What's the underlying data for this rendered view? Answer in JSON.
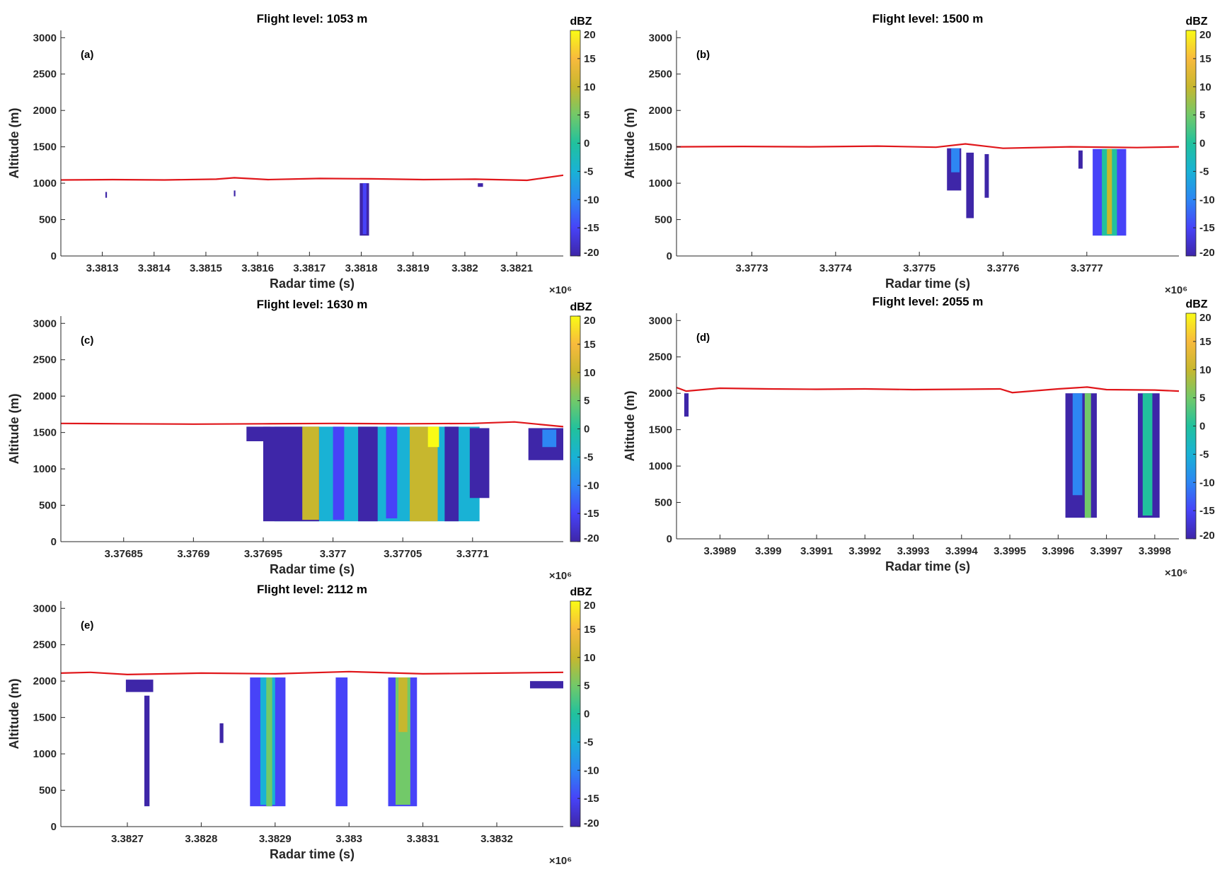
{
  "colormap": [
    "#3e26a8",
    "#4743f8",
    "#2d86f3",
    "#19b2d5",
    "#21c19d",
    "#72c969",
    "#c7b72e",
    "#f8ba3d",
    "#f9fb15"
  ],
  "flight_path_color": "#e0161a",
  "chart_data": [
    {
      "type": "heatmap",
      "panel_label": "(a)",
      "title": "Flight level: 1053 m",
      "xlabel": "Radar time (s)",
      "ylabel": "Altitude (m)",
      "x_multiplier": "×10⁶",
      "xlim": [
        3.38122,
        3.38219
      ],
      "ylim": [
        0,
        3100
      ],
      "xticks": [
        3.3813,
        3.3814,
        3.3815,
        3.3816,
        3.3817,
        3.3818,
        3.3819,
        3.382,
        3.3821
      ],
      "xtick_labels": [
        "3.3813",
        "3.3814",
        "3.3815",
        "3.3816",
        "3.3817",
        "3.3818",
        "3.3819",
        "3.382",
        "3.3821"
      ],
      "yticks": [
        0,
        500,
        1000,
        1500,
        2000,
        2500,
        3000
      ],
      "colorbar": {
        "unit": "dBZ",
        "range": [
          -20,
          20
        ],
        "ticks": [
          -20,
          -15,
          -10,
          -5,
          0,
          5,
          10,
          15,
          20
        ]
      },
      "flight_altitude": {
        "x": [
          3.38122,
          3.38132,
          3.38142,
          3.38152,
          3.381555,
          3.38162,
          3.38172,
          3.38182,
          3.38192,
          3.38202,
          3.38212,
          3.38219
        ],
        "y": [
          1045,
          1050,
          1045,
          1055,
          1075,
          1050,
          1065,
          1060,
          1050,
          1055,
          1040,
          1110
        ]
      },
      "echoes": [
        {
          "x0": 3.381797,
          "x1": 3.381815,
          "top": 1000,
          "bottom": 280,
          "dbz": -18
        },
        {
          "x0": 3.381803,
          "x1": 3.38181,
          "top": 1000,
          "bottom": 300,
          "dbz": -14
        },
        {
          "x0": 3.381306,
          "x1": 3.381309,
          "top": 880,
          "bottom": 800,
          "dbz": -20
        },
        {
          "x0": 3.381554,
          "x1": 3.381557,
          "top": 900,
          "bottom": 820,
          "dbz": -20
        },
        {
          "x0": 3.382025,
          "x1": 3.382035,
          "top": 1000,
          "bottom": 950,
          "dbz": -20
        }
      ]
    },
    {
      "type": "heatmap",
      "panel_label": "(b)",
      "title": "Flight level: 1500 m",
      "xlabel": "Radar time (s)",
      "ylabel": "Altitude (m)",
      "x_multiplier": "×10⁶",
      "xlim": [
        3.37721,
        3.37781
      ],
      "ylim": [
        0,
        3100
      ],
      "xticks": [
        3.3773,
        3.3774,
        3.3775,
        3.3776,
        3.3777
      ],
      "xtick_labels": [
        "3.3773",
        "3.3774",
        "3.3775",
        "3.3776",
        "3.3777"
      ],
      "yticks": [
        0,
        500,
        1000,
        1500,
        2000,
        2500,
        3000
      ],
      "colorbar": {
        "unit": "dBZ",
        "range": [
          -20,
          20
        ],
        "ticks": [
          -20,
          -15,
          -10,
          -5,
          0,
          5,
          10,
          15,
          20
        ]
      },
      "flight_altitude": {
        "x": [
          3.37721,
          3.37729,
          3.37737,
          3.37745,
          3.37752,
          3.377555,
          3.3776,
          3.37768,
          3.37776,
          3.37781
        ],
        "y": [
          1500,
          1505,
          1500,
          1510,
          1495,
          1540,
          1480,
          1500,
          1490,
          1500
        ]
      },
      "echoes": [
        {
          "x0": 3.377533,
          "x1": 3.37755,
          "top": 1480,
          "bottom": 900,
          "dbz": -18
        },
        {
          "x0": 3.377538,
          "x1": 3.377548,
          "top": 1480,
          "bottom": 1150,
          "dbz": -8
        },
        {
          "x0": 3.377556,
          "x1": 3.377565,
          "top": 1420,
          "bottom": 520,
          "dbz": -19
        },
        {
          "x0": 3.377578,
          "x1": 3.377583,
          "top": 1400,
          "bottom": 800,
          "dbz": -18
        },
        {
          "x0": 3.377707,
          "x1": 3.377747,
          "top": 1470,
          "bottom": 280,
          "dbz": -14
        },
        {
          "x0": 3.377718,
          "x1": 3.377736,
          "top": 1470,
          "bottom": 280,
          "dbz": 0
        },
        {
          "x0": 3.377724,
          "x1": 3.37773,
          "top": 1470,
          "bottom": 300,
          "dbz": 8
        },
        {
          "x0": 3.37769,
          "x1": 3.377695,
          "top": 1450,
          "bottom": 1200,
          "dbz": -19
        }
      ]
    },
    {
      "type": "heatmap",
      "panel_label": "(c)",
      "title": "Flight level: 1630 m",
      "xlabel": "Radar time (s)",
      "ylabel": "Altitude (m)",
      "x_multiplier": "×10⁶",
      "xlim": [
        3.376805,
        3.377165
      ],
      "ylim": [
        0,
        3100
      ],
      "xticks": [
        3.37685,
        3.3769,
        3.37695,
        3.377,
        3.37705,
        3.3771
      ],
      "xtick_labels": [
        "3.37685",
        "3.3769",
        "3.37695",
        "3.377",
        "3.37705",
        "3.3771"
      ],
      "yticks": [
        0,
        500,
        1000,
        1500,
        2000,
        2500,
        3000
      ],
      "colorbar": {
        "unit": "dBZ",
        "range": [
          -20,
          20
        ],
        "ticks": [
          -20,
          -15,
          -10,
          -5,
          0,
          5,
          10,
          15,
          20
        ]
      },
      "flight_altitude": {
        "x": [
          3.376805,
          3.37685,
          3.3769,
          3.37695,
          3.377,
          3.37705,
          3.3771,
          3.37713,
          3.377165
        ],
        "y": [
          1625,
          1620,
          1615,
          1620,
          1625,
          1620,
          1625,
          1645,
          1580
        ]
      },
      "echoes": [
        {
          "x0": 3.376958,
          "x1": 3.377105,
          "top": 1580,
          "bottom": 280,
          "dbz": -4
        },
        {
          "x0": 3.37695,
          "x1": 3.37699,
          "top": 1580,
          "bottom": 280,
          "dbz": -16
        },
        {
          "x0": 3.376978,
          "x1": 3.37699,
          "top": 1580,
          "bottom": 300,
          "dbz": 8
        },
        {
          "x0": 3.377,
          "x1": 3.377008,
          "top": 1580,
          "bottom": 300,
          "dbz": -12
        },
        {
          "x0": 3.377018,
          "x1": 3.377032,
          "top": 1580,
          "bottom": 280,
          "dbz": -17
        },
        {
          "x0": 3.377038,
          "x1": 3.377046,
          "top": 1580,
          "bottom": 320,
          "dbz": -14
        },
        {
          "x0": 3.377055,
          "x1": 3.377075,
          "top": 1580,
          "bottom": 280,
          "dbz": 8
        },
        {
          "x0": 3.377068,
          "x1": 3.377076,
          "top": 1580,
          "bottom": 1300,
          "dbz": 18
        },
        {
          "x0": 3.37708,
          "x1": 3.37709,
          "top": 1580,
          "bottom": 280,
          "dbz": -18
        },
        {
          "x0": 3.377098,
          "x1": 3.377112,
          "top": 1560,
          "bottom": 600,
          "dbz": -18
        },
        {
          "x0": 3.376938,
          "x1": 3.376955,
          "top": 1580,
          "bottom": 1380,
          "dbz": -18
        },
        {
          "x0": 3.37714,
          "x1": 3.377165,
          "top": 1560,
          "bottom": 1120,
          "dbz": -17
        },
        {
          "x0": 3.37715,
          "x1": 3.37716,
          "top": 1540,
          "bottom": 1300,
          "dbz": -10
        }
      ]
    },
    {
      "type": "heatmap",
      "panel_label": "(d)",
      "title": "Flight level: 2055 m",
      "xlabel": "Radar time (s)",
      "ylabel": "Altitude (m)",
      "x_multiplier": "×10⁶",
      "xlim": [
        3.39881,
        3.39985
      ],
      "ylim": [
        0,
        3100
      ],
      "xticks": [
        3.3989,
        3.399,
        3.3991,
        3.3992,
        3.3993,
        3.3994,
        3.3995,
        3.3996,
        3.3997,
        3.3998
      ],
      "xtick_labels": [
        "3.3989",
        "3.399",
        "3.3991",
        "3.3992",
        "3.3993",
        "3.3994",
        "3.3995",
        "3.3996",
        "3.3997",
        "3.3998"
      ],
      "yticks": [
        0,
        500,
        1000,
        1500,
        2000,
        2500,
        3000
      ],
      "colorbar": {
        "unit": "dBZ",
        "range": [
          -20,
          20
        ],
        "ticks": [
          -20,
          -15,
          -10,
          -5,
          0,
          5,
          10,
          15,
          20
        ]
      },
      "flight_altitude": {
        "x": [
          3.39881,
          3.39883,
          3.3989,
          3.399,
          3.3991,
          3.3992,
          3.3993,
          3.3994,
          3.39948,
          3.399505,
          3.3996,
          3.39966,
          3.3997,
          3.3998,
          3.39985
        ],
        "y": [
          2080,
          2030,
          2070,
          2060,
          2055,
          2060,
          2050,
          2055,
          2060,
          2010,
          2060,
          2085,
          2050,
          2045,
          2030
        ]
      },
      "echoes": [
        {
          "x0": 3.398826,
          "x1": 3.398835,
          "top": 2000,
          "bottom": 1680,
          "dbz": -17
        },
        {
          "x0": 3.399615,
          "x1": 3.39968,
          "top": 2000,
          "bottom": 290,
          "dbz": -16
        },
        {
          "x0": 3.39963,
          "x1": 3.39965,
          "top": 2000,
          "bottom": 600,
          "dbz": -8
        },
        {
          "x0": 3.399655,
          "x1": 3.399668,
          "top": 2000,
          "bottom": 290,
          "dbz": 6
        },
        {
          "x0": 3.399765,
          "x1": 3.39981,
          "top": 2000,
          "bottom": 290,
          "dbz": -16
        },
        {
          "x0": 3.399775,
          "x1": 3.399795,
          "top": 2000,
          "bottom": 320,
          "dbz": 2
        }
      ]
    },
    {
      "type": "heatmap",
      "panel_label": "(e)",
      "title": "Flight level: 2112 m",
      "xlabel": "Radar time (s)",
      "ylabel": "Altitude (m)",
      "x_multiplier": "×10⁶",
      "xlim": [
        3.38261,
        3.38329
      ],
      "ylim": [
        0,
        3100
      ],
      "xticks": [
        3.3827,
        3.3828,
        3.3829,
        3.383,
        3.3831,
        3.3832
      ],
      "xtick_labels": [
        "3.3827",
        "3.3828",
        "3.3829",
        "3.383",
        "3.3831",
        "3.3832"
      ],
      "yticks": [
        0,
        500,
        1000,
        1500,
        2000,
        2500,
        3000
      ],
      "colorbar": {
        "unit": "dBZ",
        "range": [
          -20,
          20
        ],
        "ticks": [
          -20,
          -15,
          -10,
          -5,
          0,
          5,
          10,
          15,
          20
        ]
      },
      "flight_altitude": {
        "x": [
          3.38261,
          3.38265,
          3.3827,
          3.3828,
          3.3829,
          3.383,
          3.3831,
          3.3832,
          3.38329
        ],
        "y": [
          2110,
          2120,
          2090,
          2110,
          2100,
          2130,
          2100,
          2110,
          2120
        ]
      },
      "echoes": [
        {
          "x0": 3.382698,
          "x1": 3.382735,
          "top": 2020,
          "bottom": 1850,
          "dbz": -18
        },
        {
          "x0": 3.382723,
          "x1": 3.38273,
          "top": 1800,
          "bottom": 280,
          "dbz": -17
        },
        {
          "x0": 3.382866,
          "x1": 3.382914,
          "top": 2050,
          "bottom": 280,
          "dbz": -14
        },
        {
          "x0": 3.38288,
          "x1": 3.3829,
          "top": 2050,
          "bottom": 300,
          "dbz": -6
        },
        {
          "x0": 3.382888,
          "x1": 3.382896,
          "top": 2050,
          "bottom": 280,
          "dbz": 6
        },
        {
          "x0": 3.382982,
          "x1": 3.382998,
          "top": 2050,
          "bottom": 280,
          "dbz": -12
        },
        {
          "x0": 3.383053,
          "x1": 3.383092,
          "top": 2050,
          "bottom": 280,
          "dbz": -12
        },
        {
          "x0": 3.383063,
          "x1": 3.383083,
          "top": 2050,
          "bottom": 300,
          "dbz": 4
        },
        {
          "x0": 3.383067,
          "x1": 3.383079,
          "top": 2050,
          "bottom": 1300,
          "dbz": 10
        },
        {
          "x0": 3.382825,
          "x1": 3.38283,
          "top": 1420,
          "bottom": 1150,
          "dbz": -18
        },
        {
          "x0": 3.383245,
          "x1": 3.38329,
          "top": 2000,
          "bottom": 1900,
          "dbz": -18
        }
      ]
    }
  ]
}
